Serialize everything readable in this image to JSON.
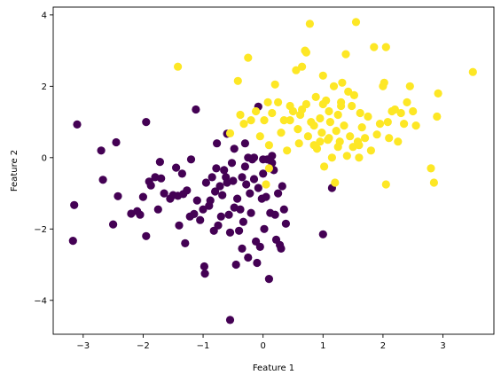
{
  "chart_data": {
    "type": "scatter",
    "title": "",
    "xlabel": "Feature 1",
    "ylabel": "Feature 2",
    "xlim": [
      -3.5,
      3.85
    ],
    "ylim": [
      -4.95,
      4.22
    ],
    "xticks": [
      -3,
      -2,
      -1,
      0,
      1,
      2,
      3
    ],
    "yticks": [
      -4,
      -2,
      0,
      2,
      4
    ],
    "grid": false,
    "legend": "none",
    "series": [
      {
        "color": "#440154",
        "points": [
          [
            -3.1,
            0.93
          ],
          [
            -3.15,
            -1.33
          ],
          [
            -3.17,
            -2.33
          ],
          [
            -2.7,
            0.2
          ],
          [
            -2.67,
            -0.62
          ],
          [
            -2.45,
            0.43
          ],
          [
            -2.42,
            -1.08
          ],
          [
            -2.5,
            -1.87
          ],
          [
            -2.2,
            -1.57
          ],
          [
            -2.1,
            -1.5
          ],
          [
            -2.05,
            -1.6
          ],
          [
            -2.0,
            -1.1
          ],
          [
            -1.95,
            -2.2
          ],
          [
            -1.95,
            1.0
          ],
          [
            -1.9,
            -0.67
          ],
          [
            -1.87,
            -0.78
          ],
          [
            -1.8,
            -0.55
          ],
          [
            -1.75,
            -1.45
          ],
          [
            -1.72,
            -0.12
          ],
          [
            -1.7,
            -0.58
          ],
          [
            -1.65,
            -1.0
          ],
          [
            -1.55,
            -1.15
          ],
          [
            -1.5,
            -1.05
          ],
          [
            -1.45,
            -0.28
          ],
          [
            -1.42,
            -1.07
          ],
          [
            -1.4,
            -1.9
          ],
          [
            -1.35,
            -0.45
          ],
          [
            -1.33,
            -1.02
          ],
          [
            -1.3,
            -2.4
          ],
          [
            -1.27,
            -0.92
          ],
          [
            -1.22,
            -1.65
          ],
          [
            -1.15,
            -1.58
          ],
          [
            -1.2,
            -0.05
          ],
          [
            -1.12,
            1.35
          ],
          [
            -1.1,
            -1.2
          ],
          [
            -1.05,
            -1.75
          ],
          [
            -1.0,
            -1.45
          ],
          [
            -0.98,
            -3.05
          ],
          [
            -0.97,
            -3.25
          ],
          [
            -0.95,
            -0.7
          ],
          [
            -0.9,
            -1.35
          ],
          [
            -0.88,
            -1.2
          ],
          [
            -0.85,
            -0.55
          ],
          [
            -0.82,
            -2.05
          ],
          [
            -0.8,
            -0.95
          ],
          [
            -0.78,
            -0.3
          ],
          [
            -0.75,
            -1.9
          ],
          [
            -0.72,
            -0.8
          ],
          [
            -0.7,
            -1.65
          ],
          [
            -0.68,
            -1.05
          ],
          [
            -0.65,
            -0.35
          ],
          [
            -0.62,
            -0.55
          ],
          [
            -0.6,
            -0.7
          ],
          [
            -0.57,
            -1.6
          ],
          [
            -0.55,
            -2.1
          ],
          [
            -0.52,
            -0.15
          ],
          [
            -0.5,
            -0.65
          ],
          [
            -0.48,
            -1.4
          ],
          [
            -0.45,
            -3.0
          ],
          [
            -0.43,
            -1.15
          ],
          [
            -0.4,
            -2.05
          ],
          [
            -0.38,
            -1.45
          ],
          [
            -0.35,
            -0.55
          ],
          [
            -0.33,
            -1.8
          ],
          [
            -0.3,
            -0.25
          ],
          [
            -0.28,
            -0.75
          ],
          [
            -0.25,
            -2.8
          ],
          [
            -0.22,
            -1.0
          ],
          [
            -0.2,
            -1.55
          ],
          [
            -0.18,
            -0.05
          ],
          [
            -0.15,
            -0.6
          ],
          [
            -0.12,
            -2.35
          ],
          [
            -0.1,
            -2.95
          ],
          [
            -0.08,
            -0.85
          ],
          [
            -0.05,
            -2.5
          ],
          [
            -0.02,
            -1.15
          ],
          [
            0.0,
            -0.45
          ],
          [
            0.02,
            -2.0
          ],
          [
            0.05,
            -1.1
          ],
          [
            0.07,
            -0.05
          ],
          [
            0.1,
            -3.4
          ],
          [
            0.12,
            -1.55
          ],
          [
            0.15,
            -0.15
          ],
          [
            0.18,
            -0.35
          ],
          [
            0.2,
            -1.6
          ],
          [
            0.22,
            -2.3
          ],
          [
            0.25,
            -1.0
          ],
          [
            0.28,
            -2.45
          ],
          [
            0.3,
            -2.55
          ],
          [
            0.32,
            -0.8
          ],
          [
            0.35,
            -1.45
          ],
          [
            0.38,
            -1.85
          ],
          [
            -0.55,
            -4.55
          ],
          [
            1.0,
            -2.15
          ],
          [
            1.15,
            -0.85
          ],
          [
            -0.35,
            -2.55
          ],
          [
            -0.15,
            0.0
          ],
          [
            -0.25,
            0.0
          ],
          [
            -0.3,
            0.4
          ],
          [
            -0.6,
            0.67
          ],
          [
            -0.77,
            0.4
          ],
          [
            -0.48,
            0.25
          ],
          [
            -0.08,
            1.43
          ],
          [
            0.0,
            -0.05
          ],
          [
            0.15,
            0.05
          ]
        ]
      },
      {
        "color": "#fde725",
        "points": [
          [
            -1.42,
            2.55
          ],
          [
            -0.55,
            0.68
          ],
          [
            -0.42,
            2.15
          ],
          [
            -0.38,
            1.2
          ],
          [
            -0.32,
            0.95
          ],
          [
            -0.25,
            2.8
          ],
          [
            -0.2,
            1.05
          ],
          [
            -0.12,
            1.3
          ],
          [
            -0.05,
            0.6
          ],
          [
            0.02,
            1.05
          ],
          [
            0.08,
            1.55
          ],
          [
            0.1,
            0.35
          ],
          [
            0.15,
            1.25
          ],
          [
            0.2,
            2.05
          ],
          [
            0.25,
            1.55
          ],
          [
            0.3,
            0.7
          ],
          [
            0.35,
            1.05
          ],
          [
            0.4,
            0.2
          ],
          [
            0.45,
            1.05
          ],
          [
            0.5,
            1.3
          ],
          [
            0.55,
            2.45
          ],
          [
            0.58,
            0.8
          ],
          [
            0.6,
            0.4
          ],
          [
            0.62,
            1.2
          ],
          [
            0.65,
            2.55
          ],
          [
            0.7,
            3.0
          ],
          [
            0.72,
            1.5
          ],
          [
            0.75,
            0.6
          ],
          [
            0.78,
            3.75
          ],
          [
            0.8,
            1.0
          ],
          [
            0.85,
            0.35
          ],
          [
            0.88,
            1.7
          ],
          [
            0.9,
            0.25
          ],
          [
            0.95,
            1.1
          ],
          [
            0.98,
            0.7
          ],
          [
            1.0,
            2.3
          ],
          [
            1.02,
            -0.25
          ],
          [
            1.05,
            1.6
          ],
          [
            1.08,
            0.5
          ],
          [
            1.1,
            1.3
          ],
          [
            1.12,
            1.0
          ],
          [
            1.15,
            0.0
          ],
          [
            1.18,
            2.0
          ],
          [
            1.2,
            -0.7
          ],
          [
            1.22,
            0.75
          ],
          [
            1.25,
            1.2
          ],
          [
            1.28,
            0.45
          ],
          [
            1.3,
            1.55
          ],
          [
            1.32,
            2.1
          ],
          [
            1.35,
            0.9
          ],
          [
            1.38,
            2.9
          ],
          [
            1.4,
            0.05
          ],
          [
            1.42,
            1.85
          ],
          [
            1.45,
            0.6
          ],
          [
            1.48,
            1.45
          ],
          [
            1.5,
            0.3
          ],
          [
            1.52,
            1.75
          ],
          [
            1.55,
            3.8
          ],
          [
            1.58,
            0.45
          ],
          [
            1.6,
            0.0
          ],
          [
            1.62,
            1.25
          ],
          [
            1.65,
            0.85
          ],
          [
            1.7,
            0.55
          ],
          [
            1.75,
            1.15
          ],
          [
            1.8,
            0.2
          ],
          [
            1.85,
            3.1
          ],
          [
            1.9,
            0.65
          ],
          [
            1.95,
            0.95
          ],
          [
            2.0,
            2.0
          ],
          [
            2.02,
            2.1
          ],
          [
            2.05,
            -0.75
          ],
          [
            2.08,
            1.0
          ],
          [
            2.1,
            0.55
          ],
          [
            2.15,
            1.3
          ],
          [
            2.2,
            1.35
          ],
          [
            2.25,
            0.45
          ],
          [
            2.3,
            1.25
          ],
          [
            2.35,
            0.95
          ],
          [
            2.4,
            1.55
          ],
          [
            2.45,
            2.0
          ],
          [
            2.5,
            1.3
          ],
          [
            2.55,
            0.9
          ],
          [
            2.8,
            -0.3
          ],
          [
            2.85,
            -0.7
          ],
          [
            2.9,
            1.15
          ],
          [
            2.92,
            1.8
          ],
          [
            3.5,
            2.4
          ],
          [
            1.0,
            1.5
          ],
          [
            0.95,
            0.45
          ],
          [
            0.65,
            1.35
          ],
          [
            0.45,
            1.45
          ],
          [
            1.1,
            0.55
          ],
          [
            1.3,
            1.45
          ],
          [
            1.25,
            0.3
          ],
          [
            1.6,
            0.35
          ],
          [
            0.1,
            -0.3
          ],
          [
            0.05,
            -0.75
          ],
          [
            0.85,
            0.9
          ],
          [
            2.05,
            3.1
          ],
          [
            0.72,
            2.95
          ]
        ]
      }
    ]
  }
}
